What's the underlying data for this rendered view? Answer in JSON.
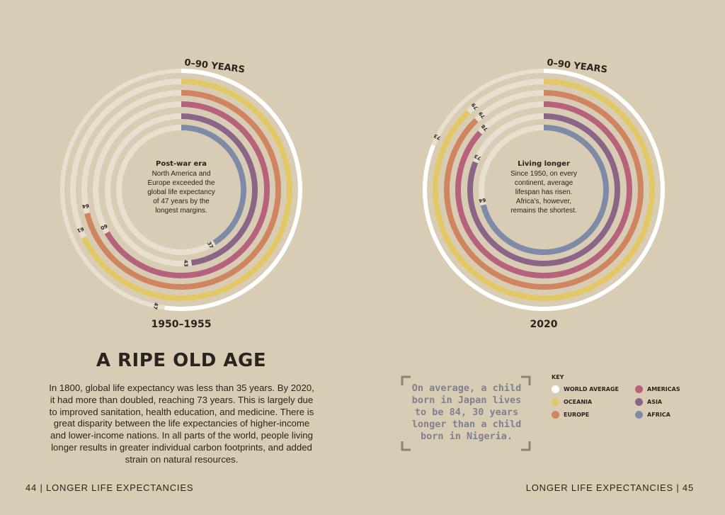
{
  "title": "A RIPE OLD AGE",
  "intro": "In 1800, global life expectancy was less than 35 years. By 2020, it had more than doubled, reaching 73 years. This is largely due to improved sanitation, health education, and medicine. There is great disparity between the life expectancies of higher-income and lower-income nations. In all parts of the world, people living longer results in greater individual carbon footprints, and added strain on natural resources.",
  "quote": "On average, a child born in Japan lives to be 84, 30 years longer than a child born in Nigeria.",
  "footer": {
    "left": "44 | LONGER LIFE EXPECTANCIES",
    "right": "LONGER LIFE EXPECTANCIES | 45"
  },
  "key": {
    "title": "KEY",
    "items": [
      {
        "label": "WORLD AVERAGE",
        "color": "#ffffff"
      },
      {
        "label": "OCEANIA",
        "color": "#e2c766"
      },
      {
        "label": "EUROPE",
        "color": "#cf8660"
      },
      {
        "label": "AMERICAS",
        "color": "#b5627a"
      },
      {
        "label": "ASIA",
        "color": "#8b6586"
      },
      {
        "label": "AFRICA",
        "color": "#7f8aa6"
      }
    ]
  },
  "chart_data": [
    {
      "type": "radial-bar",
      "range_label": "0–90 YEARS",
      "scale": [
        0,
        90
      ],
      "period": "1950–1955",
      "center_title": "Post-war era",
      "center_text": "North America and Europe exceeded the global life expectancy of 47 years by the longest margins.",
      "series": [
        {
          "name": "WORLD AVERAGE",
          "value": 47,
          "color": "#ffffff"
        },
        {
          "name": "OCEANIA",
          "value": 61,
          "color": "#e2c766"
        },
        {
          "name": "EUROPE",
          "value": 64,
          "color": "#cf8660"
        },
        {
          "name": "AMERICAS",
          "value": 60,
          "color": "#b5627a"
        },
        {
          "name": "ASIA",
          "value": 43,
          "color": "#8b6586"
        },
        {
          "name": "AFRICA",
          "value": 37,
          "color": "#7f8aa6"
        }
      ]
    },
    {
      "type": "radial-bar",
      "range_label": "0–90 YEARS",
      "scale": [
        0,
        90
      ],
      "period": "2020",
      "center_title": "Living longer",
      "center_text": "Since 1950, on every continent, average lifespan has risen. Africa’s, however, remains the shortest.",
      "series": [
        {
          "name": "WORLD AVERAGE",
          "value": 73,
          "color": "#ffffff"
        },
        {
          "name": "OCEANIA",
          "value": 79,
          "color": "#e2c766"
        },
        {
          "name": "EUROPE",
          "value": 79,
          "color": "#cf8660"
        },
        {
          "name": "AMERICAS",
          "value": 78,
          "color": "#b5627a"
        },
        {
          "name": "ASIA",
          "value": 73,
          "color": "#8b6586"
        },
        {
          "name": "AFRICA",
          "value": 64,
          "color": "#7f8aa6"
        }
      ]
    }
  ]
}
